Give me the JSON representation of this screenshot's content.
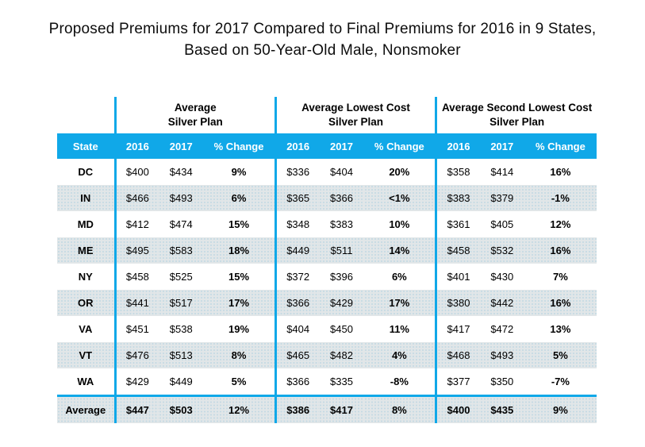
{
  "title": {
    "line1": "Proposed Premiums for 2017 Compared to Final Premiums for 2016 in 9 States,",
    "line2": "Based on 50-Year-Old Male, Nonsmoker"
  },
  "colors": {
    "accent_blue": "#10a8e8",
    "stripe_base": "#e1e6e8",
    "stripe_dot": "#c3d9e3",
    "header_text": "#ffffff",
    "body_text": "#000000"
  },
  "chart_data": {
    "type": "table",
    "title": "Proposed Premiums for 2017 Compared to Final Premiums for 2016 in 9 States, Based on 50-Year-Old Male, Nonsmoker",
    "state_header": "State",
    "column_groups": [
      "Average\nSilver Plan",
      "Average Lowest Cost\nSilver Plan",
      "Average Second Lowest Cost\nSilver Plan"
    ],
    "sub_columns": [
      "2016",
      "2017",
      "% Change"
    ],
    "rows": [
      {
        "state": "DC",
        "values": [
          "$400",
          "$434",
          "9%",
          "$336",
          "$404",
          "20%",
          "$358",
          "$414",
          "16%"
        ]
      },
      {
        "state": "IN",
        "values": [
          "$466",
          "$493",
          "6%",
          "$365",
          "$366",
          "<1%",
          "$383",
          "$379",
          "-1%"
        ]
      },
      {
        "state": "MD",
        "values": [
          "$412",
          "$474",
          "15%",
          "$348",
          "$383",
          "10%",
          "$361",
          "$405",
          "12%"
        ]
      },
      {
        "state": "ME",
        "values": [
          "$495",
          "$583",
          "18%",
          "$449",
          "$511",
          "14%",
          "$458",
          "$532",
          "16%"
        ]
      },
      {
        "state": "NY",
        "values": [
          "$458",
          "$525",
          "15%",
          "$372",
          "$396",
          "6%",
          "$401",
          "$430",
          "7%"
        ]
      },
      {
        "state": "OR",
        "values": [
          "$441",
          "$517",
          "17%",
          "$366",
          "$429",
          "17%",
          "$380",
          "$442",
          "16%"
        ]
      },
      {
        "state": "VA",
        "values": [
          "$451",
          "$538",
          "19%",
          "$404",
          "$450",
          "11%",
          "$417",
          "$472",
          "13%"
        ]
      },
      {
        "state": "VT",
        "values": [
          "$476",
          "$513",
          "8%",
          "$465",
          "$482",
          "4%",
          "$468",
          "$493",
          "5%"
        ]
      },
      {
        "state": "WA",
        "values": [
          "$429",
          "$449",
          "5%",
          "$366",
          "$335",
          "-8%",
          "$377",
          "$350",
          "-7%"
        ]
      },
      {
        "state": "Average",
        "is_summary": true,
        "values": [
          "$447",
          "$503",
          "12%",
          "$386",
          "$417",
          "8%",
          "$400",
          "$435",
          "9%"
        ]
      }
    ]
  }
}
